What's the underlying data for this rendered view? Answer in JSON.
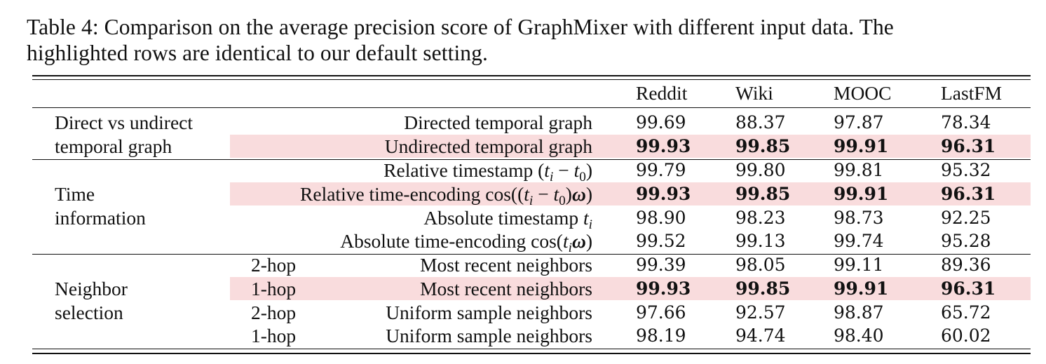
{
  "caption": {
    "line1": "Table 4: Comparison on the average precision score of GraphMixer with different input data. The",
    "line2": "highlighted rows are identical to our default setting."
  },
  "columns": [
    "Reddit",
    "Wiki",
    "MOOC",
    "LastFM"
  ],
  "groups": {
    "g1": [
      "Direct vs undirect",
      "temporal graph"
    ],
    "g2": [
      "Time",
      "information"
    ],
    "g3": [
      "Neighbor",
      "selection"
    ]
  },
  "rows": [
    {
      "hop": "",
      "setting": "Directed temporal graph",
      "values": [
        "99.69",
        "88.37",
        "97.87",
        "78.34"
      ],
      "highlighted": false
    },
    {
      "hop": "",
      "setting": "Undirected temporal graph",
      "values": [
        "99.93",
        "99.85",
        "99.91",
        "96.31"
      ],
      "highlighted": true
    },
    {
      "hop": "",
      "setting": "Relative timestamp",
      "math": "(ti − t0)",
      "values": [
        "99.79",
        "99.80",
        "99.81",
        "95.32"
      ],
      "highlighted": false
    },
    {
      "hop": "",
      "setting": "Relative time-encoding",
      "math": "cos((ti − t0)ω)",
      "values": [
        "99.93",
        "99.85",
        "99.91",
        "96.31"
      ],
      "highlighted": true
    },
    {
      "hop": "",
      "setting": "Absolute timestamp",
      "math": "ti",
      "values": [
        "98.90",
        "98.23",
        "98.73",
        "92.25"
      ],
      "highlighted": false
    },
    {
      "hop": "",
      "setting": "Absolute time-encoding",
      "math": "cos(tiω)",
      "values": [
        "99.52",
        "99.13",
        "99.74",
        "95.28"
      ],
      "highlighted": false
    },
    {
      "hop": "2-hop",
      "setting": "Most recent neighbors",
      "values": [
        "99.39",
        "98.05",
        "99.11",
        "89.36"
      ],
      "highlighted": false
    },
    {
      "hop": "1-hop",
      "setting": "Most recent neighbors",
      "values": [
        "99.93",
        "99.85",
        "99.91",
        "96.31"
      ],
      "highlighted": true
    },
    {
      "hop": "2-hop",
      "setting": "Uniform sample neighbors",
      "values": [
        "97.66",
        "92.57",
        "98.87",
        "65.72"
      ],
      "highlighted": false
    },
    {
      "hop": "1-hop",
      "setting": "Uniform sample neighbors",
      "values": [
        "98.19",
        "94.74",
        "98.40",
        "60.02"
      ],
      "highlighted": false
    }
  ]
}
